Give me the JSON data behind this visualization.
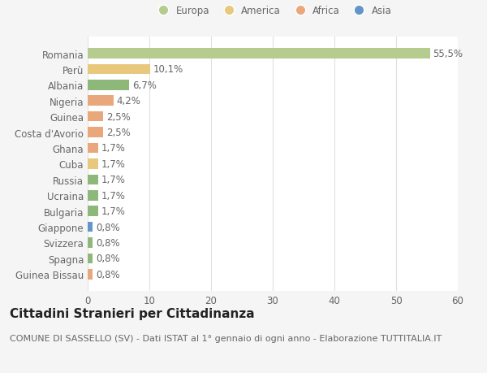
{
  "categories": [
    "Guinea Bissau",
    "Spagna",
    "Svizzera",
    "Giappone",
    "Bulgaria",
    "Ucraina",
    "Russia",
    "Cuba",
    "Ghana",
    "Costa d'Avorio",
    "Guinea",
    "Nigeria",
    "Albania",
    "Perù",
    "Romania"
  ],
  "values": [
    0.8,
    0.8,
    0.8,
    0.8,
    1.7,
    1.7,
    1.7,
    1.7,
    1.7,
    2.5,
    2.5,
    4.2,
    6.7,
    10.1,
    55.5
  ],
  "labels": [
    "0,8%",
    "0,8%",
    "0,8%",
    "0,8%",
    "1,7%",
    "1,7%",
    "1,7%",
    "1,7%",
    "1,7%",
    "2,5%",
    "2,5%",
    "4,2%",
    "6,7%",
    "10,1%",
    "55,5%"
  ],
  "colors": [
    "#e8a87c",
    "#8db87a",
    "#8db87a",
    "#6495c8",
    "#8db87a",
    "#8db87a",
    "#8db87a",
    "#e8c87c",
    "#e8a87c",
    "#e8a87c",
    "#e8a87c",
    "#e8a87c",
    "#8db87a",
    "#e8c87c",
    "#b5cc8e"
  ],
  "continent": [
    "Africa",
    "Europa",
    "Europa",
    "Asia",
    "Europa",
    "Europa",
    "Europa",
    "America",
    "Africa",
    "Africa",
    "Africa",
    "Africa",
    "Europa",
    "America",
    "Europa"
  ],
  "legend_labels": [
    "Europa",
    "America",
    "Africa",
    "Asia"
  ],
  "legend_colors": [
    "#b5cc8e",
    "#e8c87c",
    "#e8a87c",
    "#6495c8"
  ],
  "title": "Cittadini Stranieri per Cittadinanza",
  "subtitle": "COMUNE DI SASSELLO (SV) - Dati ISTAT al 1° gennaio di ogni anno - Elaborazione TUTTITALIA.IT",
  "xlim": [
    0,
    60
  ],
  "xticks": [
    0,
    10,
    20,
    30,
    40,
    50,
    60
  ],
  "bg_color": "#f5f5f5",
  "plot_bg_color": "#ffffff",
  "grid_color": "#e0e0e0",
  "text_color": "#666666",
  "title_color": "#222222",
  "subtitle_color": "#666666",
  "label_fontsize": 8.5,
  "title_fontsize": 11,
  "subtitle_fontsize": 8
}
